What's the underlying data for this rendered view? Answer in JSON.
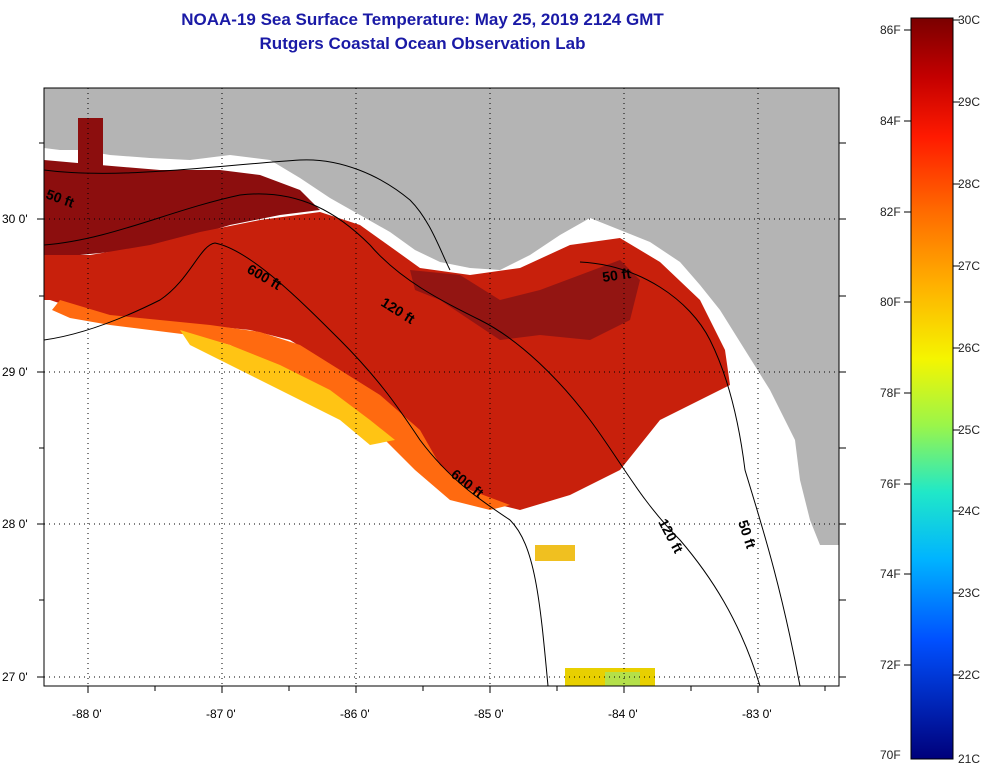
{
  "header": {
    "title": "NOAA-19 Sea Surface Temperature:  May 25, 2019 2124 GMT",
    "subtitle": "Rutgers Coastal Ocean Observation Lab"
  },
  "map": {
    "lon_ticks": [
      "-88 0'",
      "-87 0'",
      "-86 0'",
      "-85 0'",
      "-84 0'",
      "-83 0'"
    ],
    "lat_ticks": [
      "30 0'",
      "29 0'",
      "28 0'",
      "27 0'"
    ],
    "contours": [
      {
        "label": "50 ft"
      },
      {
        "label": "600 ft"
      },
      {
        "label": "120 ft"
      },
      {
        "label": "50 ft"
      },
      {
        "label": "600 ft"
      },
      {
        "label": "120 ft"
      },
      {
        "label": "50 ft"
      }
    ],
    "colors": {
      "land": "#b4b4b4",
      "no_data": "#ffffff",
      "coastline": "#ffffff",
      "contour": "#000000"
    }
  },
  "colorbar": {
    "fahrenheit": [
      "86F",
      "84F",
      "82F",
      "80F",
      "78F",
      "76F",
      "74F",
      "72F",
      "70F"
    ],
    "celsius": [
      "30C",
      "29C",
      "28C",
      "27C",
      "26C",
      "25C",
      "24C",
      "23C",
      "22C",
      "21C"
    ]
  }
}
